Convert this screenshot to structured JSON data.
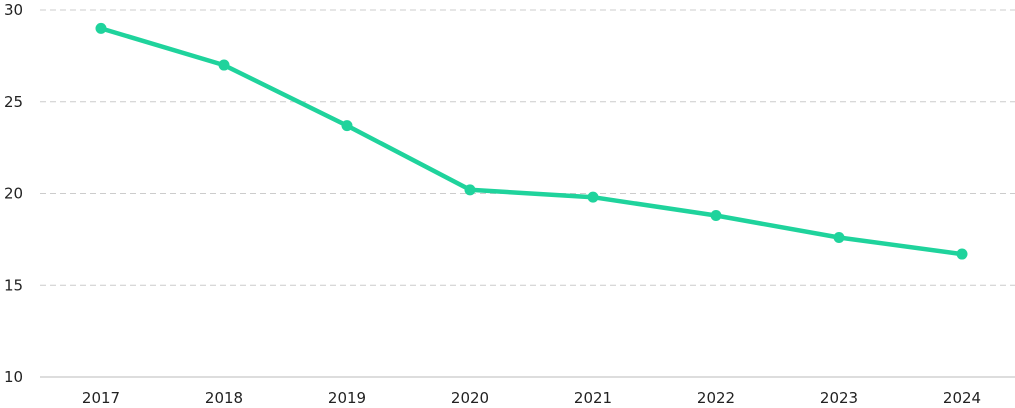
{
  "chart_data": {
    "type": "line",
    "title": "",
    "xlabel": "",
    "ylabel": "",
    "x": [
      "2017",
      "2018",
      "2019",
      "2020",
      "2021",
      "2022",
      "2023",
      "2024"
    ],
    "series": [
      {
        "values": [
          29.0,
          27.0,
          23.7,
          20.2,
          19.8,
          18.8,
          17.6,
          16.7
        ],
        "color": "#1fd39c"
      }
    ],
    "ylim": [
      10,
      30
    ],
    "yticks": [
      10,
      15,
      20,
      25,
      30
    ],
    "grid": true,
    "grid_style": "dashed",
    "legend": "none"
  }
}
